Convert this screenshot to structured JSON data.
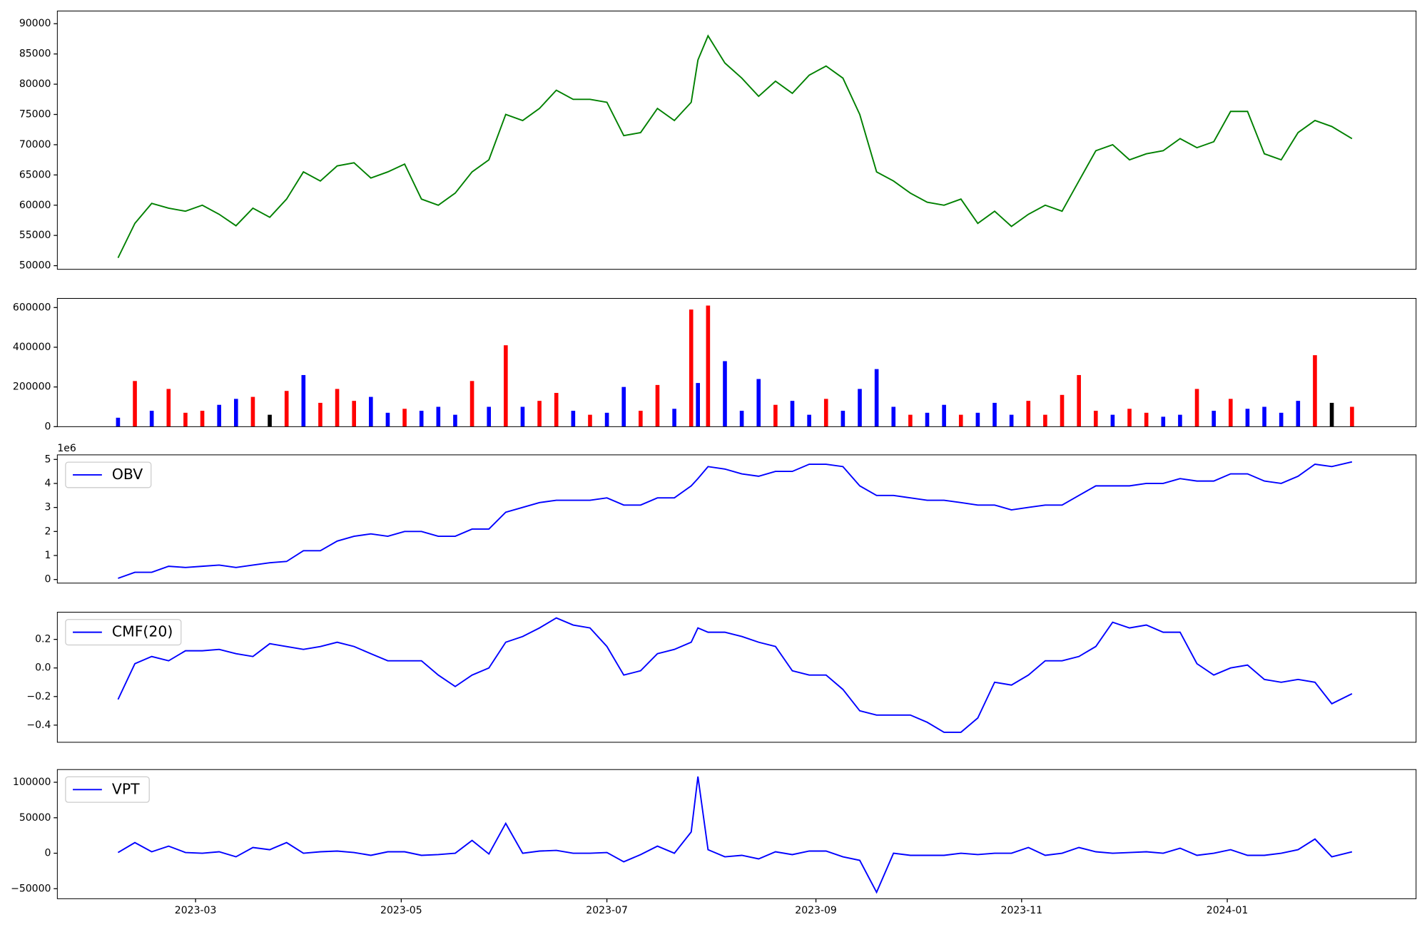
{
  "chart_data": {
    "type": "multipanel",
    "x": [
      "2023-02-06",
      "2023-02-11",
      "2023-02-16",
      "2023-02-21",
      "2023-02-26",
      "2023-03-03",
      "2023-03-08",
      "2023-03-13",
      "2023-03-18",
      "2023-03-23",
      "2023-03-28",
      "2023-04-02",
      "2023-04-07",
      "2023-04-12",
      "2023-04-17",
      "2023-04-22",
      "2023-04-27",
      "2023-05-02",
      "2023-05-07",
      "2023-05-12",
      "2023-05-17",
      "2023-05-22",
      "2023-05-27",
      "2023-06-01",
      "2023-06-06",
      "2023-06-11",
      "2023-06-16",
      "2023-06-21",
      "2023-06-26",
      "2023-07-01",
      "2023-07-06",
      "2023-07-11",
      "2023-07-16",
      "2023-07-21",
      "2023-07-26",
      "2023-07-28",
      "2023-07-31",
      "2023-08-05",
      "2023-08-10",
      "2023-08-15",
      "2023-08-20",
      "2023-08-25",
      "2023-08-30",
      "2023-09-04",
      "2023-09-09",
      "2023-09-14",
      "2023-09-19",
      "2023-09-24",
      "2023-09-29",
      "2023-10-04",
      "2023-10-09",
      "2023-10-14",
      "2023-10-19",
      "2023-10-24",
      "2023-10-29",
      "2023-11-03",
      "2023-11-08",
      "2023-11-13",
      "2023-11-18",
      "2023-11-23",
      "2023-11-28",
      "2023-12-03",
      "2023-12-08",
      "2023-12-13",
      "2023-12-18",
      "2023-12-23",
      "2023-12-28",
      "2024-01-02",
      "2024-01-07",
      "2024-01-12",
      "2024-01-17",
      "2024-01-22",
      "2024-01-27",
      "2024-02-01",
      "2024-02-07"
    ],
    "xlim": [
      "2023-01-19",
      "2024-02-26"
    ],
    "xticks": [
      {
        "value": "2023-03-01",
        "label": "2023-03"
      },
      {
        "value": "2023-05-01",
        "label": "2023-05"
      },
      {
        "value": "2023-07-01",
        "label": "2023-07"
      },
      {
        "value": "2023-09-01",
        "label": "2023-09"
      },
      {
        "value": "2023-11-01",
        "label": "2023-11"
      },
      {
        "value": "2024-01-01",
        "label": "2024-01"
      }
    ],
    "panels": [
      {
        "type": "line",
        "ylim": [
          49400,
          92100
        ],
        "yticks": [
          50000,
          55000,
          60000,
          65000,
          70000,
          75000,
          80000,
          85000,
          90000
        ],
        "series": [
          {
            "color": "#008000",
            "values": [
              51300,
              57000,
              60300,
              59500,
              59000,
              60000,
              58500,
              56600,
              59500,
              58000,
              61000,
              65500,
              64000,
              66500,
              67000,
              64500,
              65500,
              66800,
              61000,
              60000,
              62000,
              65500,
              67500,
              75000,
              74000,
              76000,
              79000,
              77500,
              77500,
              77000,
              71500,
              72000,
              76000,
              74000,
              77000,
              84000,
              88000,
              83500,
              81000,
              78000,
              80500,
              78500,
              81500,
              83000,
              81000,
              75000,
              65500,
              64000,
              62000,
              60500,
              60000,
              61000,
              57000,
              59000,
              56500,
              58500,
              60000,
              59000,
              64000,
              69000,
              70000,
              67500,
              68500,
              69000,
              71000,
              69500,
              70500,
              75500,
              75500,
              68500,
              67500,
              72000,
              74000,
              73000,
              71000
            ]
          }
        ]
      },
      {
        "type": "bar",
        "ylim": [
          0,
          646000
        ],
        "yticks": [
          0,
          200000,
          400000,
          600000
        ],
        "values": [
          45000,
          230000,
          80000,
          190000,
          70000,
          80000,
          110000,
          140000,
          150000,
          60000,
          180000,
          260000,
          120000,
          190000,
          130000,
          150000,
          70000,
          90000,
          80000,
          100000,
          60000,
          230000,
          100000,
          410000,
          100000,
          130000,
          170000,
          80000,
          60000,
          70000,
          200000,
          80000,
          210000,
          90000,
          590000,
          220000,
          610000,
          330000,
          80000,
          240000,
          110000,
          130000,
          60000,
          140000,
          80000,
          190000,
          290000,
          100000,
          60000,
          70000,
          110000,
          60000,
          70000,
          120000,
          60000,
          130000,
          60000,
          160000,
          260000,
          80000,
          60000,
          90000,
          70000,
          50000,
          60000,
          190000,
          80000,
          140000,
          90000,
          100000,
          70000,
          130000,
          360000,
          120000,
          100000
        ],
        "colors": [
          "blue",
          "red",
          "blue",
          "red",
          "red",
          "red",
          "blue",
          "blue",
          "red",
          "black",
          "red",
          "blue",
          "red",
          "red",
          "red",
          "blue",
          "blue",
          "red",
          "blue",
          "blue",
          "blue",
          "red",
          "blue",
          "red",
          "blue",
          "red",
          "red",
          "blue",
          "red",
          "blue",
          "blue",
          "red",
          "red",
          "blue",
          "red",
          "blue",
          "red",
          "blue",
          "blue",
          "blue",
          "red",
          "blue",
          "blue",
          "red",
          "blue",
          "blue",
          "blue",
          "blue",
          "red",
          "blue",
          "blue",
          "red",
          "blue",
          "blue",
          "blue",
          "red",
          "red",
          "red",
          "red",
          "red",
          "blue",
          "red",
          "red",
          "blue",
          "blue",
          "red",
          "blue",
          "red",
          "blue",
          "blue",
          "blue",
          "blue",
          "red",
          "black",
          "red"
        ]
      },
      {
        "type": "line",
        "ylim": [
          -0.15,
          5.19
        ],
        "yticks": [
          0,
          1,
          2,
          3,
          4,
          5
        ],
        "axis_offset_label": "1e6",
        "legend": "upper left",
        "series": [
          {
            "name": "OBV",
            "color": "blue",
            "values": [
              0.05,
              0.3,
              0.3,
              0.55,
              0.5,
              0.55,
              0.6,
              0.5,
              0.6,
              0.7,
              0.75,
              1.2,
              1.2,
              1.6,
              1.8,
              1.9,
              1.8,
              2.0,
              2.0,
              1.8,
              1.8,
              2.1,
              2.1,
              2.8,
              3.0,
              3.2,
              3.3,
              3.3,
              3.3,
              3.4,
              3.1,
              3.1,
              3.4,
              3.4,
              3.9,
              4.2,
              4.7,
              4.6,
              4.4,
              4.3,
              4.5,
              4.5,
              4.8,
              4.8,
              4.7,
              3.9,
              3.5,
              3.5,
              3.4,
              3.3,
              3.3,
              3.2,
              3.1,
              3.1,
              2.9,
              3.0,
              3.1,
              3.1,
              3.5,
              3.9,
              3.9,
              3.9,
              4.0,
              4.0,
              4.2,
              4.1,
              4.1,
              4.4,
              4.4,
              4.1,
              4.0,
              4.3,
              4.8,
              4.7,
              4.9
            ]
          }
        ]
      },
      {
        "type": "line",
        "ylim": [
          -0.52,
          0.39
        ],
        "yticks": [
          {
            "value": -0.4,
            "label": "−0.4"
          },
          {
            "value": -0.2,
            "label": "−0.2"
          },
          {
            "value": 0,
            "label": "0.0"
          },
          0.2
        ],
        "legend": "upper left",
        "series": [
          {
            "name": "CMF(20)",
            "color": "blue",
            "values": [
              -0.22,
              0.03,
              0.08,
              0.05,
              0.12,
              0.12,
              0.13,
              0.1,
              0.08,
              0.17,
              0.15,
              0.13,
              0.15,
              0.18,
              0.15,
              0.1,
              0.05,
              0.05,
              0.05,
              -0.05,
              -0.13,
              -0.05,
              0.0,
              0.18,
              0.22,
              0.28,
              0.35,
              0.3,
              0.28,
              0.15,
              -0.05,
              -0.02,
              0.1,
              0.13,
              0.18,
              0.28,
              0.25,
              0.25,
              0.22,
              0.18,
              0.15,
              -0.02,
              -0.05,
              -0.05,
              -0.15,
              -0.3,
              -0.33,
              -0.33,
              -0.33,
              -0.38,
              -0.45,
              -0.45,
              -0.35,
              -0.1,
              -0.12,
              -0.05,
              0.05,
              0.05,
              0.08,
              0.15,
              0.32,
              0.28,
              0.3,
              0.25,
              0.25,
              0.03,
              -0.05,
              0.0,
              0.02,
              -0.08,
              -0.1,
              -0.08,
              -0.1,
              -0.25,
              -0.18
            ]
          }
        ]
      },
      {
        "type": "line",
        "ylim": [
          -64100,
          117900
        ],
        "yticks": [
          {
            "value": -50000,
            "label": "−50000"
          },
          0,
          50000,
          100000
        ],
        "legend": "upper left",
        "series": [
          {
            "name": "VPT",
            "color": "blue",
            "values": [
              1000,
              15000,
              2000,
              10000,
              1000,
              0,
              2000,
              -5000,
              8000,
              5000,
              15000,
              0,
              2000,
              3000,
              1000,
              -3000,
              2000,
              2000,
              -3000,
              -2000,
              0,
              18000,
              -1000,
              42000,
              0,
              3000,
              4000,
              0,
              0,
              1000,
              -12000,
              -2000,
              10000,
              0,
              30000,
              108000,
              5000,
              -5000,
              -3000,
              -8000,
              2000,
              -2000,
              3000,
              3000,
              -5000,
              -10000,
              -55000,
              0,
              -3000,
              -3000,
              -3000,
              0,
              -2000,
              0,
              0,
              8000,
              -3000,
              0,
              8000,
              2000,
              0,
              1000,
              2000,
              0,
              7000,
              -3000,
              0,
              5000,
              -3000,
              -3000,
              0,
              5000,
              20000,
              -5000,
              2000
            ]
          }
        ]
      }
    ]
  }
}
